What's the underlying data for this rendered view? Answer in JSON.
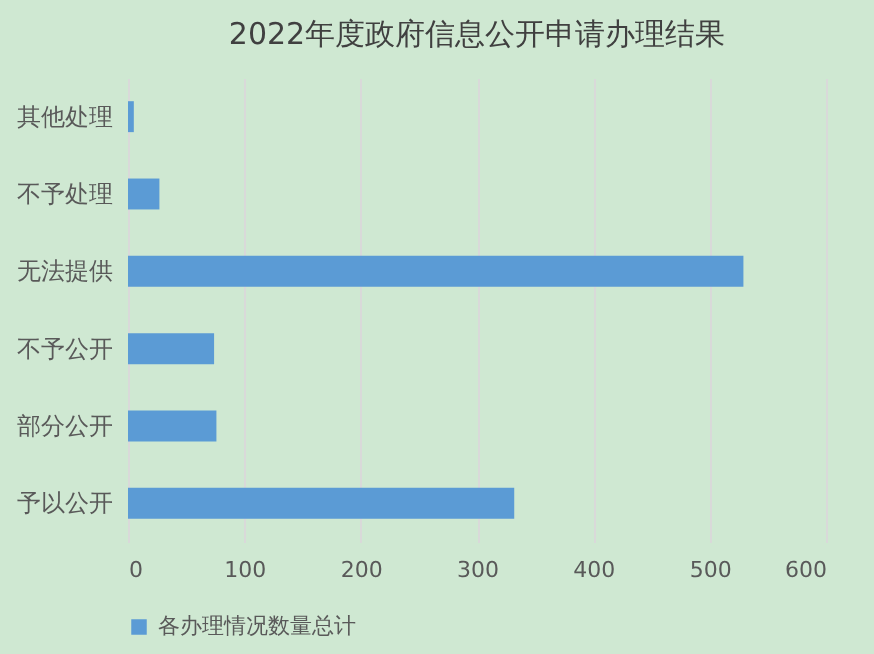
{
  "chart_data": {
    "type": "bar",
    "orientation": "horizontal",
    "title": "2022年度政府信息公开申请办理结果",
    "categories": [
      "其他处理",
      "不予处理",
      "无法提供",
      "不予公开",
      "部分公开",
      "予以公开"
    ],
    "series": [
      {
        "name": "各办理情况数量总计",
        "color": "#5b9bd5",
        "values": [
          5,
          27,
          529,
          74,
          76,
          332
        ]
      }
    ],
    "xlim": [
      0,
      600
    ],
    "xticks": [
      0,
      100,
      200,
      300,
      400,
      500,
      600
    ],
    "grid": "x",
    "legend": "bottom"
  }
}
